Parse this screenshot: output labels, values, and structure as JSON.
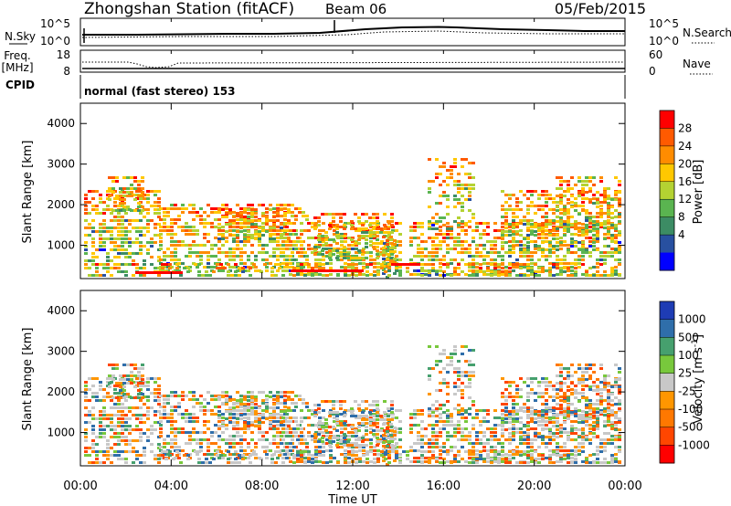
{
  "header": {
    "station": "Zhongshan Station (fitACF)",
    "beam": "Beam 06",
    "date": "05/Feb/2015"
  },
  "noise_panel": {
    "left_label": "N.Sky",
    "right_label": "N.Search",
    "left_ticks": [
      "10^5",
      "10^0"
    ],
    "right_ticks": [
      "10^5",
      "10^0"
    ]
  },
  "freq_panel": {
    "left_label_1": "Freq.",
    "left_label_2": "[MHz]",
    "right_label": "Nave",
    "left_ticks": [
      "18",
      "8"
    ],
    "right_ticks": [
      "60",
      "0"
    ]
  },
  "cpid": {
    "label": "CPID",
    "mode": "normal (fast stereo) 153"
  },
  "chart_data": [
    {
      "type": "heatmap",
      "name": "power",
      "ylabel": "Slant Range [km]",
      "xlabel": "Time UT",
      "xlim": [
        "00:00",
        "24:00"
      ],
      "ylim": [
        180,
        4500
      ],
      "y_ticks": [
        "4000",
        "3000",
        "2000",
        "1000"
      ],
      "x_ticks": [
        "00:00",
        "04:00",
        "08:00",
        "12:00",
        "16:00",
        "20:00",
        "00:00"
      ],
      "colorbar": {
        "label": "Power [dB]",
        "ticks": [
          "28",
          "24",
          "20",
          "16",
          "12",
          "8",
          "4"
        ],
        "colors": [
          "#ff0000",
          "#ff5a00",
          "#ff8c00",
          "#ffc800",
          "#b4d232",
          "#5ab450",
          "#3c8c64",
          "#2850a0",
          "#0000ff"
        ]
      }
    },
    {
      "type": "heatmap",
      "name": "velocity",
      "ylabel": "Slant Range [km]",
      "xlabel": "Time UT",
      "xlim": [
        "00:00",
        "24:00"
      ],
      "ylim": [
        180,
        4500
      ],
      "y_ticks": [
        "4000",
        "3000",
        "2000",
        "1000"
      ],
      "x_ticks": [
        "00:00",
        "04:00",
        "08:00",
        "12:00",
        "16:00",
        "20:00",
        "00:00"
      ],
      "colorbar": {
        "label": "Velocity [m s^-1]",
        "ticks": [
          "1000",
          "500",
          "100",
          "25",
          "-25",
          "-100",
          "-500",
          "-1000"
        ],
        "colors": [
          "#1e3cb4",
          "#2f6eaa",
          "#46a06e",
          "#78c83c",
          "#c8c8c8",
          "#ff9600",
          "#ff7800",
          "#ff4600",
          "#ff0000"
        ]
      }
    }
  ]
}
